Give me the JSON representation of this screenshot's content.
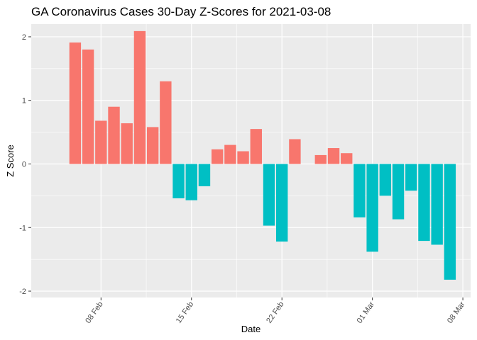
{
  "chart_data": {
    "type": "bar",
    "title": "GA Coronavirus Cases 30-Day Z-Scores for 2021-03-08",
    "xlabel": "Date",
    "ylabel": "Z Score",
    "ylim": [
      -2.1,
      2.2
    ],
    "yticks": [
      -2,
      -1,
      0,
      1,
      2
    ],
    "xticks": [
      {
        "label": "08 Feb",
        "day": 8
      },
      {
        "label": "15 Feb",
        "day": 15
      },
      {
        "label": "22 Feb",
        "day": 22
      },
      {
        "label": "01 Mar",
        "day": 29
      },
      {
        "label": "08 Mar",
        "day": 36
      }
    ],
    "x_range_days": [
      2.6,
      36.6
    ],
    "grid": true,
    "legend": "none",
    "colors": {
      "positive": "#F8766D",
      "negative": "#00BFC4",
      "panel": "#EBEBEB",
      "grid": "#FFFFFF"
    },
    "dates": [
      "2021-02-06",
      "2021-02-07",
      "2021-02-08",
      "2021-02-09",
      "2021-02-10",
      "2021-02-11",
      "2021-02-12",
      "2021-02-13",
      "2021-02-14",
      "2021-02-15",
      "2021-02-16",
      "2021-02-17",
      "2021-02-18",
      "2021-02-19",
      "2021-02-20",
      "2021-02-21",
      "2021-02-22",
      "2021-02-23",
      "2021-02-24",
      "2021-02-25",
      "2021-02-26",
      "2021-02-27",
      "2021-02-28",
      "2021-03-01",
      "2021-03-02",
      "2021-03-03",
      "2021-03-04",
      "2021-03-05",
      "2021-03-06",
      "2021-03-07"
    ],
    "days": [
      6,
      7,
      8,
      9,
      10,
      11,
      12,
      13,
      14,
      15,
      16,
      17,
      18,
      19,
      20,
      21,
      22,
      23,
      24,
      25,
      26,
      27,
      28,
      29,
      30,
      31,
      32,
      33,
      34,
      35
    ],
    "values": [
      1.91,
      1.8,
      0.68,
      0.9,
      0.64,
      2.09,
      0.58,
      1.3,
      -0.54,
      -0.57,
      -0.35,
      0.23,
      0.3,
      0.2,
      0.55,
      -0.97,
      -1.22,
      0.39,
      0.0,
      0.14,
      0.25,
      0.17,
      -0.84,
      -1.38,
      -0.5,
      -0.87,
      -0.42,
      -1.21,
      -1.27,
      -1.82
    ]
  }
}
